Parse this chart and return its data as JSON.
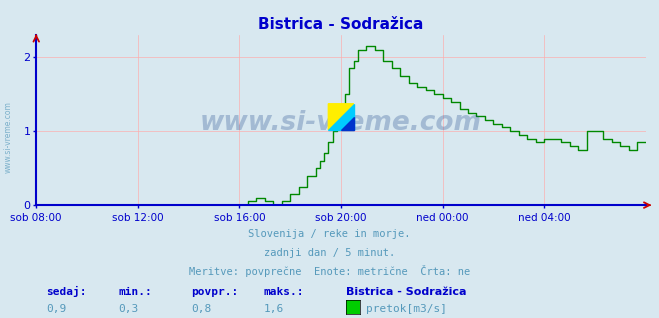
{
  "title": "Bistrica - Sodražica",
  "bg_color": "#d8e8f0",
  "plot_bg_color": "#d8e8f0",
  "line_color": "#008800",
  "axis_color": "#0000cc",
  "grid_color": "#ffaaaa",
  "title_color": "#0000cc",
  "text_color": "#5599bb",
  "label_color": "#0000cc",
  "xlabel_ticks": [
    "sob 08:00",
    "sob 12:00",
    "sob 16:00",
    "sob 20:00",
    "ned 00:00",
    "ned 04:00"
  ],
  "yticks": [
    0,
    1,
    2
  ],
  "ylim": [
    0,
    2.3
  ],
  "xlim": [
    0,
    288
  ],
  "tick_positions_x": [
    0,
    48,
    96,
    144,
    192,
    240
  ],
  "footer_line1": "Slovenija / reke in morje.",
  "footer_line2": "zadnji dan / 5 minut.",
  "footer_line3": "Meritve: povprečne  Enote: metrične  Črta: ne",
  "legend_station": "Bistrica - Sodražica",
  "legend_label": "pretok[m3/s]",
  "legend_color": "#00cc00",
  "stat_labels": [
    "sedaj:",
    "min.:",
    "povpr.:",
    "maks.:"
  ],
  "stat_values": [
    "0,9",
    "0,3",
    "0,8",
    "1,6"
  ],
  "watermark": "www.si-vreme.com",
  "watermark_color": "#1a4488",
  "sidebar_text": "www.si-vreme.com"
}
